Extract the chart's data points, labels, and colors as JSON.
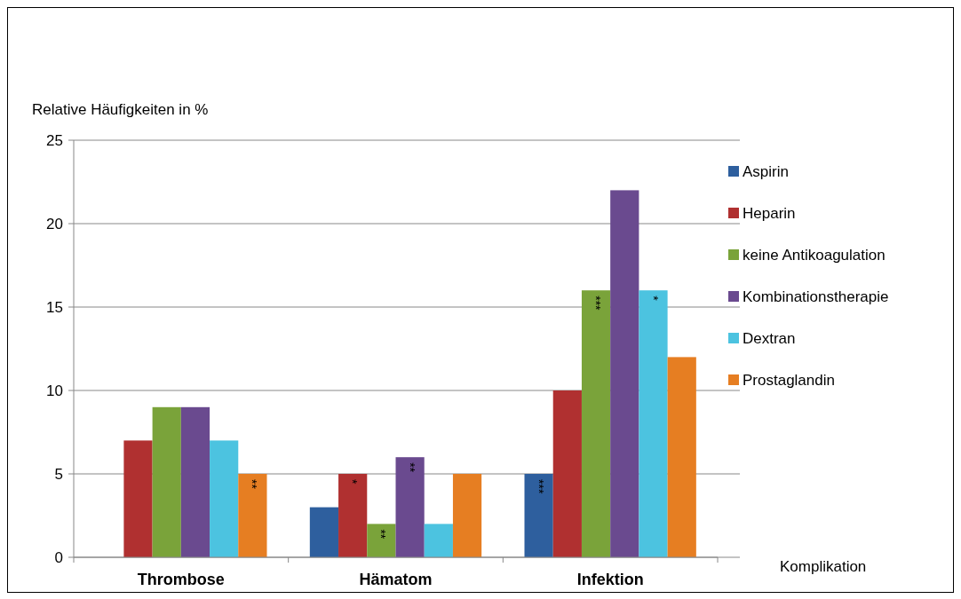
{
  "chart_data": {
    "type": "bar",
    "ylabel": "Relative Häufigkeiten in %",
    "xlabel": "Komplikation",
    "categories": [
      "Thrombose",
      "Hämatom",
      "Infektion"
    ],
    "series": [
      {
        "name": "Aspirin",
        "color": "#2e5f9e",
        "values": [
          0,
          3,
          5
        ],
        "value_labels": [
          null,
          null,
          "***"
        ]
      },
      {
        "name": "Heparin",
        "color": "#b03030",
        "values": [
          7,
          5,
          10
        ],
        "value_labels": [
          null,
          "*",
          null
        ]
      },
      {
        "name": "keine Antikoagulation",
        "color": "#7aa33a",
        "values": [
          9,
          2,
          16
        ],
        "value_labels": [
          null,
          "**",
          "***"
        ]
      },
      {
        "name": "Kombinationstherapie",
        "color": "#6a4a8f",
        "values": [
          9,
          6,
          22
        ],
        "value_labels": [
          null,
          "**",
          null
        ]
      },
      {
        "name": "Dextran",
        "color": "#4cc3e0",
        "values": [
          7,
          2,
          16
        ],
        "value_labels": [
          null,
          null,
          "*"
        ]
      },
      {
        "name": "Prostaglandin",
        "color": "#e67e22",
        "values": [
          5,
          5,
          12
        ],
        "value_labels": [
          "**",
          null,
          null
        ]
      }
    ],
    "ylim": [
      0,
      25
    ],
    "yticks": [
      0,
      5,
      10,
      15,
      20,
      25
    ],
    "grid": "y",
    "legend": "right"
  }
}
